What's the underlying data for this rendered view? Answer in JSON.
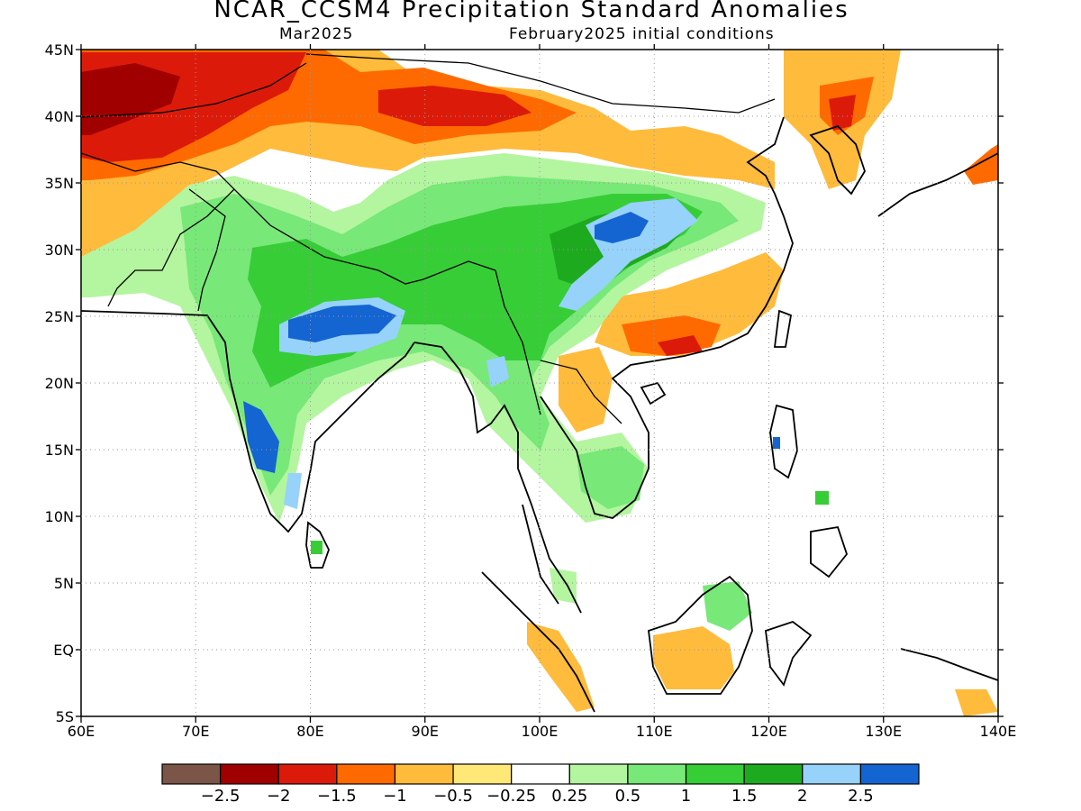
{
  "title": "NCAR_CCSM4 Precipitation Standard Anomalies",
  "subtitle_left": "Mar2025",
  "subtitle_right": "February2025 initial conditions",
  "map": {
    "lon_range": [
      60,
      140
    ],
    "lat_range": [
      -5,
      45
    ],
    "x_ticks": [
      "60E",
      "70E",
      "80E",
      "90E",
      "100E",
      "110E",
      "120E",
      "130E",
      "140E"
    ],
    "y_ticks": [
      "45N",
      "40N",
      "35N",
      "30N",
      "25N",
      "20N",
      "15N",
      "10N",
      "5N",
      "EQ",
      "5S"
    ],
    "gridlines": "dotted"
  },
  "colorbar": {
    "colors": [
      "#7a5548",
      "#a00000",
      "#dc1a0a",
      "#ff6a00",
      "#ffbb3c",
      "#ffe878",
      "#ffffff",
      "#b4f5a0",
      "#78e878",
      "#37cd37",
      "#1eaa1e",
      "#96d2fa",
      "#1464d2"
    ],
    "labels": [
      "-2.5",
      "-2",
      "-1.5",
      "-1",
      "-0.5",
      "-0.25",
      "0.25",
      "0.5",
      "1",
      "1.5",
      "2",
      "2.5"
    ]
  }
}
